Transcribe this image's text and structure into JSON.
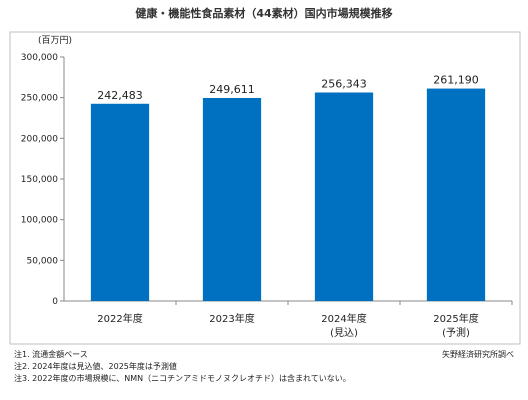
{
  "chart_data": {
    "type": "bar",
    "title": "健康・機能性食品素材（44素材）国内市場規模推移",
    "ylabel": "(百万円)",
    "xlabel": "",
    "categories": [
      "2022年度",
      "2023年度",
      "2024年度",
      "2025年度"
    ],
    "category_sublabels": [
      "",
      "",
      "(見込)",
      "(予測)"
    ],
    "values": [
      242483,
      249611,
      256343,
      261190
    ],
    "data_labels": [
      "242,483",
      "249,611",
      "256,343",
      "261,190"
    ],
    "ylim": [
      0,
      300000
    ],
    "yticks": [
      0,
      50000,
      100000,
      150000,
      200000,
      250000,
      300000
    ],
    "ytick_labels": [
      "0",
      "50,000",
      "100,000",
      "150,000",
      "200,000",
      "250,000",
      "300,000"
    ],
    "grid": false,
    "legend": "none",
    "bar_color": "#0070c0"
  },
  "notes": [
    "注1. 流通金額ベース",
    "注2. 2024年度は見込値、2025年度は予測値",
    "注3. 2022年度の市場規模に、NMN（ニコチンアミドモノヌクレオチド）は含まれていない。"
  ],
  "source": "矢野経済研究所調べ"
}
